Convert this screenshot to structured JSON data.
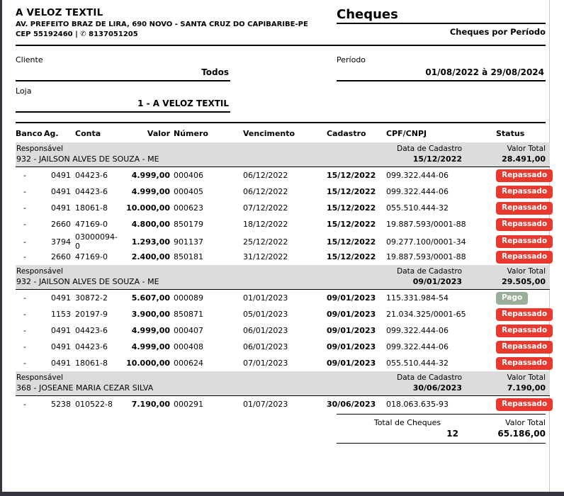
{
  "company": {
    "name": "A VELOZ TEXTIL",
    "address": "AV. PREFEITO BRAZ DE LIRA, 690 NOVO - SANTA CRUZ DO CAPIBARIBE-PE",
    "cep_phone": "CEP 55192460 | ✆ 8137051205"
  },
  "report": {
    "title": "Cheques",
    "subtitle": "Cheques por Período"
  },
  "filters": {
    "cliente_label": "Cliente",
    "cliente_value": "Todos",
    "periodo_label": "Período",
    "periodo_value": "01/08/2022 à 29/08/2024",
    "loja_label": "Loja",
    "loja_value": "1 - A VELOZ TEXTIL"
  },
  "table": {
    "headers": [
      "Banco",
      "Ag.",
      "Conta",
      "Valor",
      "Número",
      "Vencimento",
      "Cadastro",
      "CPF/CNPJ",
      "Status"
    ]
  },
  "band_labels": {
    "responsavel": "Responsável",
    "data_cadastro": "Data de Cadastro",
    "valor_total": "Valor Total"
  },
  "groups": [
    {
      "responsavel": "932 - JAILSON ALVES DE SOUZA - ME",
      "data_cadastro": "15/12/2022",
      "valor_total": "28.491,00",
      "rows": [
        {
          "banco": "-",
          "ag": "0491",
          "conta": "04423-6",
          "valor": "4.999,00",
          "numero": "000406",
          "vencimento": "06/12/2022",
          "cadastro": "15/12/2022",
          "cpf": "099.322.444-06",
          "status": {
            "label": "Repassado",
            "type": "repassado"
          }
        },
        {
          "banco": "-",
          "ag": "0491",
          "conta": "04423-6",
          "valor": "4.999,00",
          "numero": "000405",
          "vencimento": "06/12/2022",
          "cadastro": "15/12/2022",
          "cpf": "099.322.444-06",
          "status": {
            "label": "Repassado",
            "type": "repassado"
          }
        },
        {
          "banco": "-",
          "ag": "0491",
          "conta": "18061-8",
          "valor": "10.000,00",
          "numero": "000623",
          "vencimento": "07/12/2022",
          "cadastro": "15/12/2022",
          "cpf": "055.510.444-32",
          "status": {
            "label": "Repassado",
            "type": "repassado"
          }
        },
        {
          "banco": "-",
          "ag": "2660",
          "conta": "47169-0",
          "valor": "4.800,00",
          "numero": "850179",
          "vencimento": "18/12/2022",
          "cadastro": "15/12/2022",
          "cpf": "19.887.593/0001-88",
          "status": {
            "label": "Repassado",
            "type": "repassado"
          }
        },
        {
          "banco": "-",
          "ag": "3794",
          "conta": "03000094-0",
          "valor": "1.293,00",
          "numero": "901137",
          "vencimento": "25/12/2022",
          "cadastro": "15/12/2022",
          "cpf": "09.277.100/0001-34",
          "status": {
            "label": "Repassado",
            "type": "repassado"
          }
        },
        {
          "banco": "-",
          "ag": "2660",
          "conta": "47169-0",
          "valor": "2.400,00",
          "numero": "850181",
          "vencimento": "31/12/2022",
          "cadastro": "15/12/2022",
          "cpf": "19.887.593/0001-88",
          "status": {
            "label": "Repassado",
            "type": "repassado"
          }
        }
      ]
    },
    {
      "responsavel": "932 - JAILSON ALVES DE SOUZA - ME",
      "data_cadastro": "09/01/2023",
      "valor_total": "29.505,00",
      "rows": [
        {
          "banco": "-",
          "ag": "0491",
          "conta": "30872-2",
          "valor": "5.607,00",
          "numero": "000089",
          "vencimento": "01/01/2023",
          "cadastro": "09/01/2023",
          "cpf": "115.331.984-54",
          "status": {
            "label": "Pago",
            "type": "pago"
          }
        },
        {
          "banco": "-",
          "ag": "1153",
          "conta": "20197-9",
          "valor": "3.900,00",
          "numero": "850871",
          "vencimento": "05/01/2023",
          "cadastro": "09/01/2023",
          "cpf": "21.034.325/0001-65",
          "status": {
            "label": "Repassado",
            "type": "repassado"
          }
        },
        {
          "banco": "-",
          "ag": "0491",
          "conta": "04423-6",
          "valor": "4.999,00",
          "numero": "000407",
          "vencimento": "06/01/2023",
          "cadastro": "09/01/2023",
          "cpf": "099.322.444-06",
          "status": {
            "label": "Repassado",
            "type": "repassado"
          }
        },
        {
          "banco": "-",
          "ag": "0491",
          "conta": "04423-6",
          "valor": "4.999,00",
          "numero": "000408",
          "vencimento": "06/01/2023",
          "cadastro": "09/01/2023",
          "cpf": "099.322.444-06",
          "status": {
            "label": "Repassado",
            "type": "repassado"
          }
        },
        {
          "banco": "-",
          "ag": "0491",
          "conta": "18061-8",
          "valor": "10.000,00",
          "numero": "000624",
          "vencimento": "07/01/2023",
          "cadastro": "09/01/2023",
          "cpf": "055.510.444-32",
          "status": {
            "label": "Repassado",
            "type": "repassado"
          }
        }
      ]
    },
    {
      "responsavel": "368 - JOSEANE MARIA CEZAR SILVA",
      "data_cadastro": "30/06/2023",
      "valor_total": "7.190,00",
      "rows": [
        {
          "banco": "-",
          "ag": "5238",
          "conta": "010522-8",
          "valor": "7.190,00",
          "numero": "000291",
          "vencimento": "01/07/2023",
          "cadastro": "30/06/2023",
          "cpf": "018.063.635-93",
          "status": {
            "label": "Repassado",
            "type": "repassado"
          }
        }
      ]
    }
  ],
  "totals": {
    "cheques_label": "Total de Cheques",
    "cheques_value": "12",
    "valor_label": "Valor Total",
    "valor_value": "65.186,00"
  },
  "colors": {
    "status_repassado": "#e8392f",
    "status_pago": "#9aae9a",
    "band_background": "#dcdcdc"
  }
}
